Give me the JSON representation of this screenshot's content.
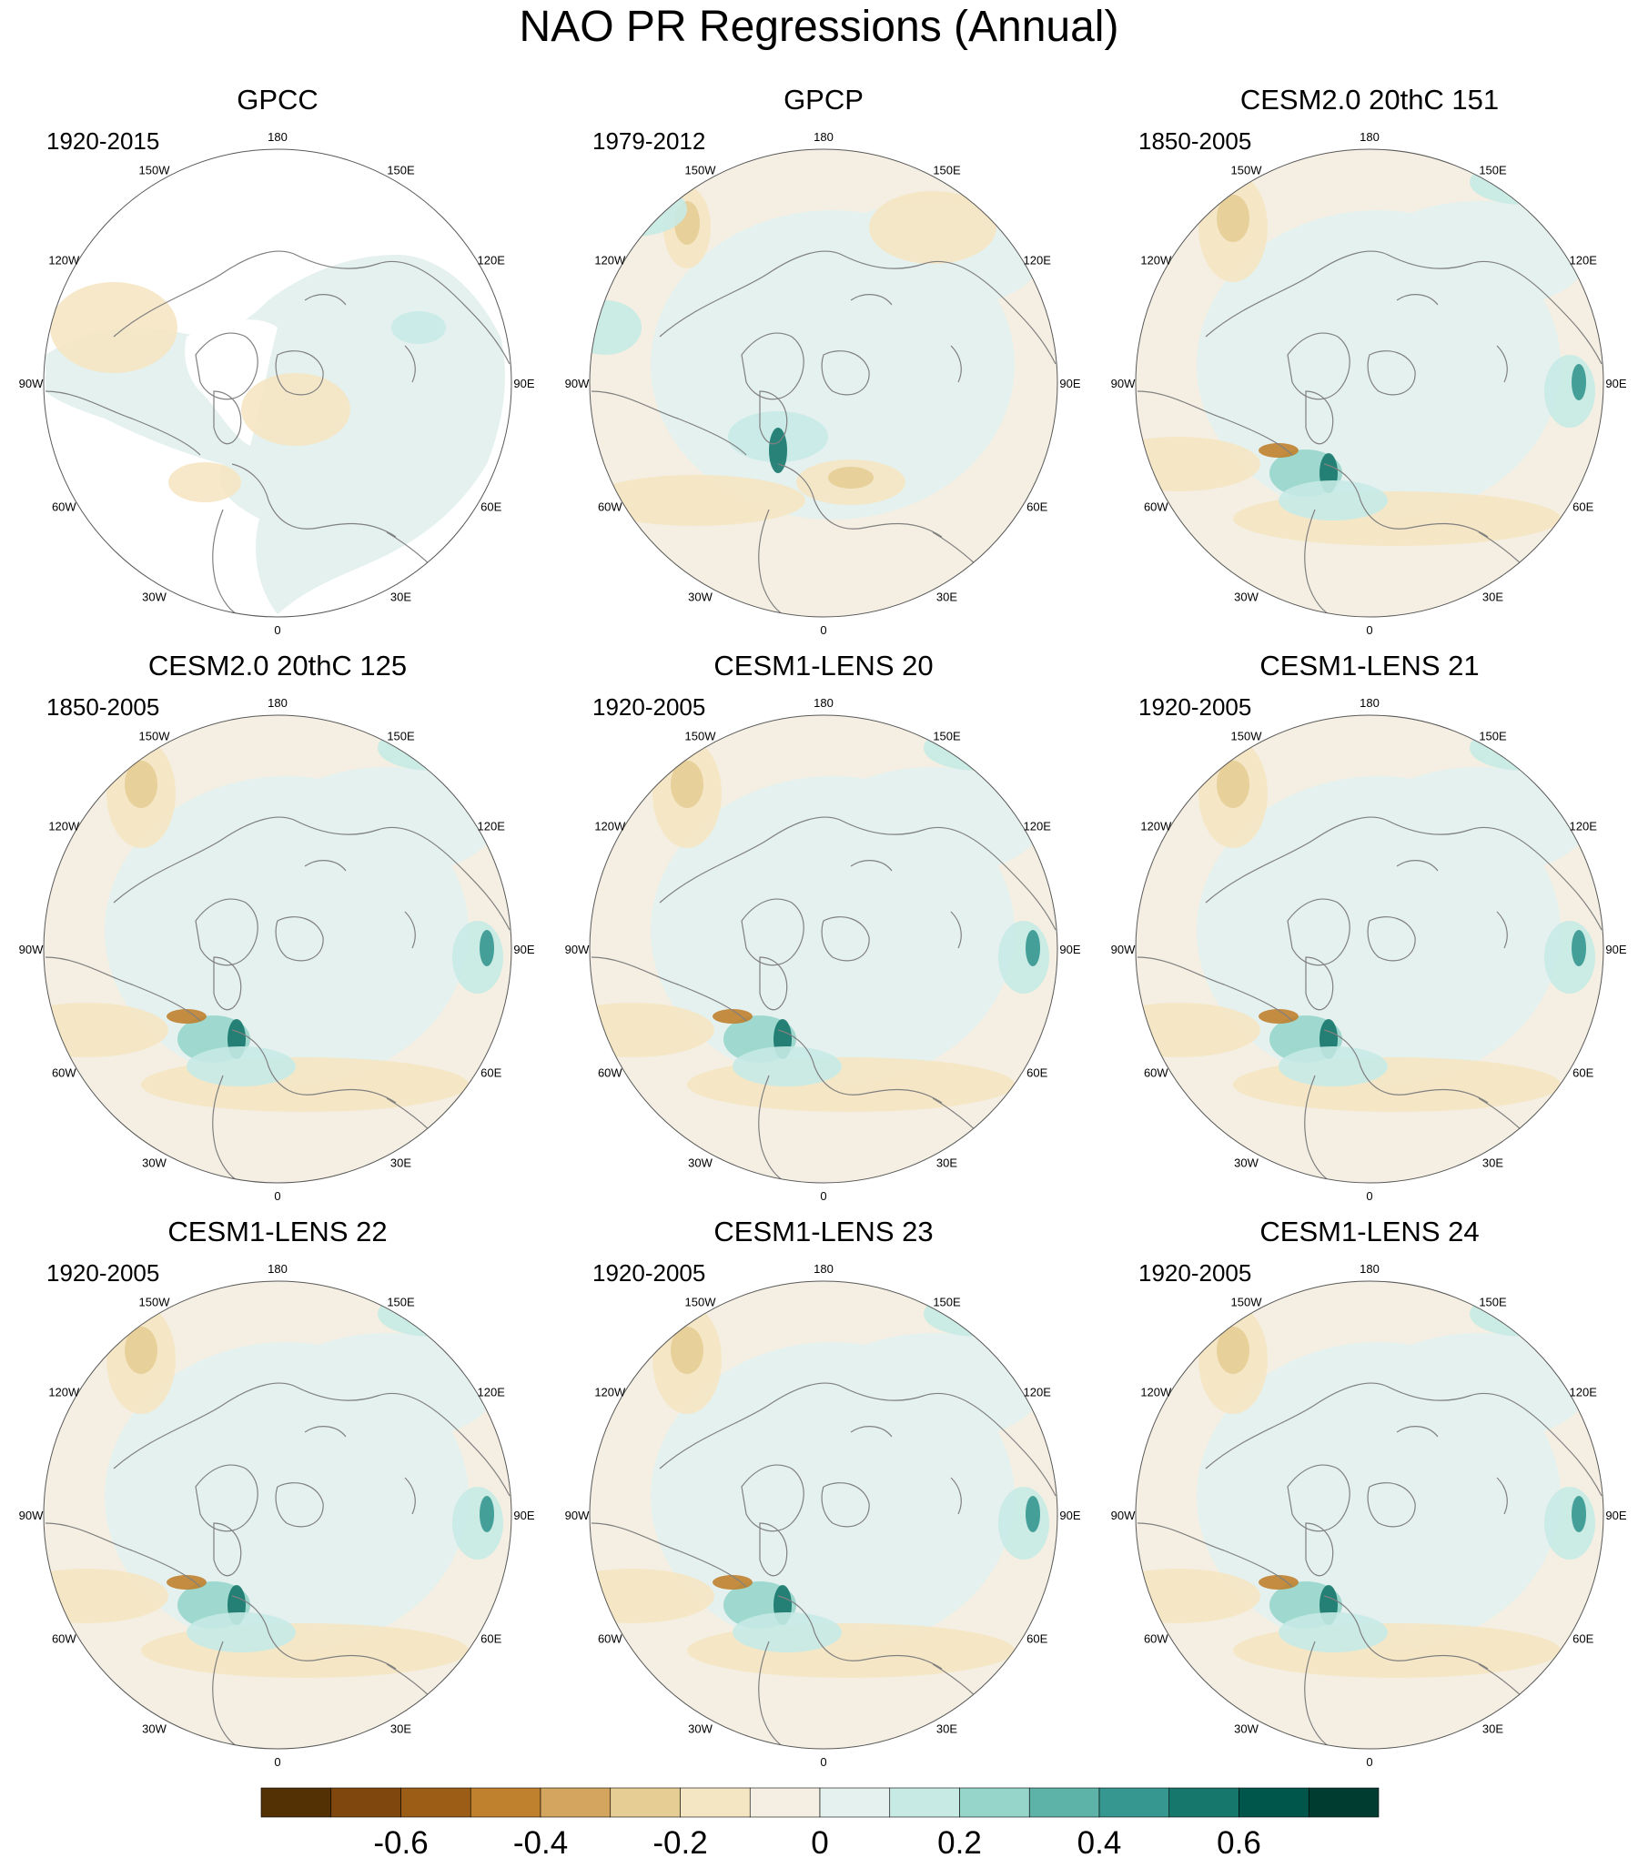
{
  "title": "NAO PR Regressions (Annual)",
  "panels": [
    {
      "title": "GPCC",
      "period": "1920-2015",
      "type": "obs-gpcc"
    },
    {
      "title": "GPCP",
      "period": "1979-2012",
      "type": "obs-gpcp"
    },
    {
      "title": "CESM2.0 20thC 151",
      "period": "1850-2005",
      "type": "model"
    },
    {
      "title": "CESM2.0 20thC 125",
      "period": "1850-2005",
      "type": "model"
    },
    {
      "title": "CESM1-LENS 20",
      "period": "1920-2005",
      "type": "model"
    },
    {
      "title": "CESM1-LENS 21",
      "period": "1920-2005",
      "type": "model"
    },
    {
      "title": "CESM1-LENS 22",
      "period": "1920-2005",
      "type": "model"
    },
    {
      "title": "CESM1-LENS 23",
      "period": "1920-2005",
      "type": "model"
    },
    {
      "title": "CESM1-LENS 24",
      "period": "1920-2005",
      "type": "model"
    }
  ],
  "longitude_labels": [
    "180",
    "150E",
    "120E",
    "90E",
    "60E",
    "30E",
    "0",
    "30W",
    "60W",
    "90W",
    "120W",
    "150W"
  ],
  "colorbar": {
    "colors": [
      "#543005",
      "#7f470d",
      "#9c5d16",
      "#bf812d",
      "#d3a55f",
      "#e6cd94",
      "#f5e6c3",
      "#f4efe2",
      "#e5f1ef",
      "#c7eae5",
      "#96d5ca",
      "#5db3a7",
      "#35978f",
      "#16776c",
      "#01564c",
      "#003c30"
    ],
    "labels": [
      "-0.6",
      "-0.4",
      "-0.2",
      "0",
      "0.2",
      "0.4",
      "0.6"
    ],
    "label_values": [
      -0.6,
      -0.4,
      -0.2,
      0,
      0.2,
      0.4,
      0.6
    ],
    "min": -0.8,
    "max": 0.8
  },
  "palette": {
    "neutral_land_ocean": "#f4efe2",
    "light_blue": "#e5f1ef",
    "light_tan": "#f5e6c3",
    "tan": "#e6cd94",
    "coast_line": "#808080",
    "map_border": "#595959"
  }
}
